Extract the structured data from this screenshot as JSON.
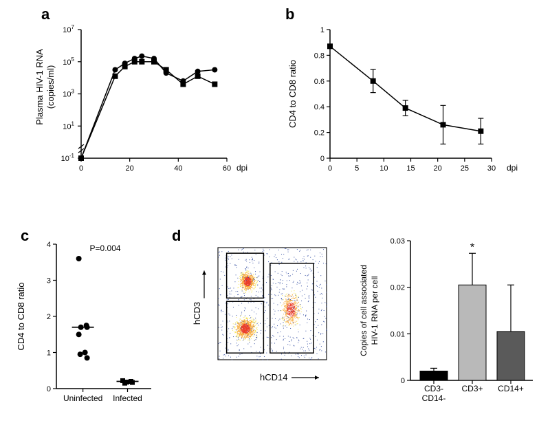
{
  "panel_a": {
    "label": "a",
    "type": "line-log",
    "ylabel": "Plasma HIV-1 RNA\n(copies/ml)",
    "xlabel": "dpi",
    "xlim": [
      0,
      60
    ],
    "ylim_log": [
      -1,
      7
    ],
    "xticks": [
      0,
      20,
      40,
      60
    ],
    "yticks": [
      -1,
      1,
      3,
      5,
      7
    ],
    "ytick_labels": [
      "10⁻¹",
      "10¹",
      "10³",
      "10⁵",
      "10⁷"
    ],
    "series1": {
      "marker": "circle",
      "values_log": [
        [
          0,
          -1
        ],
        [
          14,
          4.5
        ],
        [
          18,
          4.9
        ],
        [
          22,
          5.2
        ],
        [
          25,
          5.35
        ],
        [
          30,
          5.2
        ],
        [
          35,
          4.3
        ],
        [
          42,
          3.8
        ],
        [
          48,
          4.4
        ],
        [
          55,
          4.5
        ]
      ]
    },
    "series2": {
      "marker": "square",
      "values_log": [
        [
          0,
          -1
        ],
        [
          14,
          4.1
        ],
        [
          18,
          4.7
        ],
        [
          22,
          5.0
        ],
        [
          25,
          5.0
        ],
        [
          30,
          5.0
        ],
        [
          35,
          4.5
        ],
        [
          42,
          3.6
        ],
        [
          48,
          4.1
        ],
        [
          55,
          3.6
        ]
      ]
    },
    "line_color": "#000000",
    "bg": "#ffffff",
    "marker_size": 4,
    "line_width": 1.5
  },
  "panel_b": {
    "label": "b",
    "type": "line",
    "ylabel": "CD4 to CD8 ratio",
    "xlabel": "dpi",
    "xlim": [
      0,
      30
    ],
    "ylim": [
      0,
      1
    ],
    "xticks": [
      0,
      5,
      10,
      15,
      20,
      25,
      30
    ],
    "yticks": [
      0,
      0.2,
      0.4,
      0.6,
      0.8,
      1
    ],
    "points": [
      [
        0,
        0.87
      ],
      [
        8,
        0.6
      ],
      [
        14,
        0.39
      ],
      [
        21,
        0.26
      ],
      [
        28,
        0.21
      ]
    ],
    "errors": [
      0,
      0.09,
      0.06,
      0.15,
      0.1
    ],
    "line_color": "#000000",
    "marker": "square",
    "marker_size": 4,
    "line_width": 1.5
  },
  "panel_c": {
    "label": "c",
    "type": "scatter",
    "ylabel": "CD4 to CD8 ratio",
    "ylim": [
      0,
      4
    ],
    "yticks": [
      0,
      1,
      2,
      3,
      4
    ],
    "categories": [
      "Uninfected",
      "Infected"
    ],
    "p_text": "P=0.004",
    "group1": {
      "median": 1.7,
      "points": [
        3.6,
        1.75,
        1.7,
        1.7,
        1.5,
        1.0,
        0.95,
        0.85
      ]
    },
    "group2": {
      "median": 0.2,
      "points": [
        0.22,
        0.2,
        0.18,
        0.17,
        0.15
      ]
    },
    "marker1": "circle",
    "marker2": "square",
    "marker_size": 4,
    "line_color": "#000000"
  },
  "panel_d": {
    "label": "d",
    "type": "composite",
    "facs": {
      "xlabel": "hCD14",
      "ylabel": "hCD3",
      "colors": {
        "low": "#3a53a4",
        "mid1": "#3eb0e0",
        "mid2": "#6ec06e",
        "mid3": "#f6e34a",
        "mid4": "#f7a733",
        "high": "#ea3f2a"
      }
    },
    "bar": {
      "ylabel": "Copies of cell associated\nHIV-1 RNA per cell",
      "ylim": [
        0,
        0.03
      ],
      "yticks": [
        0,
        0.01,
        0.02,
        0.03
      ],
      "categories": [
        "CD3-\nCD14-",
        "CD3+",
        "CD14+"
      ],
      "values": [
        0.002,
        0.0205,
        0.0105
      ],
      "errors": [
        0.0006,
        0.0068,
        0.01
      ],
      "colors": [
        "#000000",
        "#b9b9b9",
        "#5a5a5a"
      ],
      "sig_text": "*"
    }
  },
  "font": {
    "label_size": 13,
    "tick_size": 11,
    "panel_label_size": 22
  },
  "page_bg": "#ffffff"
}
